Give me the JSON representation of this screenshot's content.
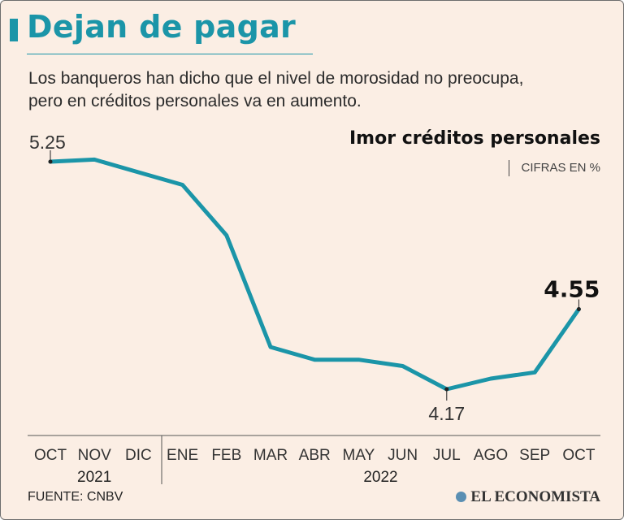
{
  "header": {
    "title": "Dejan de pagar",
    "subtitle_line1": "Los  banqueros han dicho que el nivel de morosidad no preocupa,",
    "subtitle_line2": "pero en créditos personales va en aumento."
  },
  "colors": {
    "accent": "#1b95a8",
    "background": "#fbeee4",
    "text": "#2b2b2b"
  },
  "chart_data": {
    "type": "line",
    "title": "Imor créditos personales",
    "units": "CIFRAS EN %",
    "categories": [
      "OCT",
      "NOV",
      "DIC",
      "ENE",
      "FEB",
      "MAR",
      "ABR",
      "MAY",
      "JUN",
      "JUL",
      "AGO",
      "SEP",
      "OCT"
    ],
    "years": [
      {
        "label": "2021",
        "start": 0,
        "end": 2
      },
      {
        "label": "2022",
        "start": 3,
        "end": 12
      }
    ],
    "values": [
      5.25,
      5.26,
      5.2,
      5.14,
      4.9,
      4.37,
      4.31,
      4.31,
      4.28,
      4.17,
      4.22,
      4.25,
      4.55
    ],
    "annotations": [
      {
        "index": 0,
        "text": "5.25",
        "style": "normal"
      },
      {
        "index": 9,
        "text": "4.17",
        "style": "normal"
      },
      {
        "index": 12,
        "text": "4.55",
        "style": "bold"
      }
    ],
    "ylim": [
      4.1,
      5.3
    ]
  },
  "footer": {
    "source": "FUENTE: CNBV",
    "brand": "EL ECONOMISTA"
  }
}
